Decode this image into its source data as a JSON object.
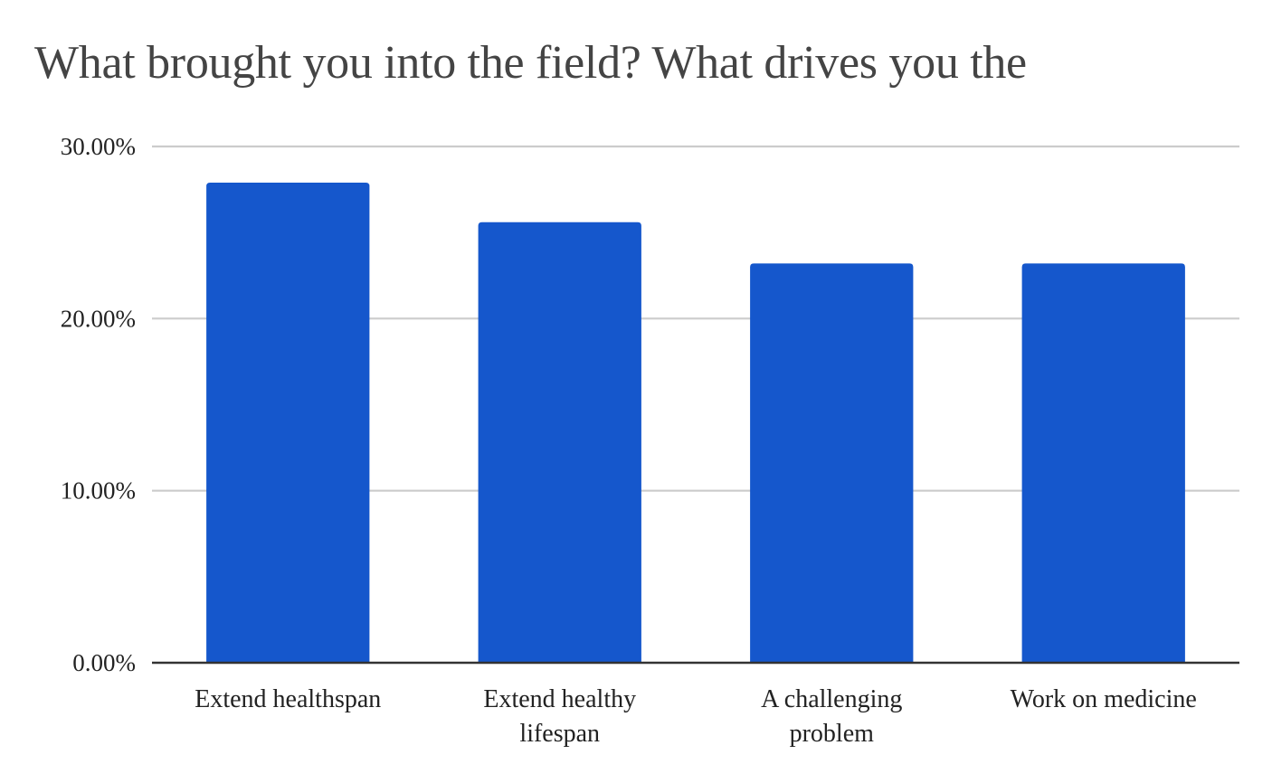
{
  "chart_data": {
    "type": "bar",
    "title": "What brought you into the field? What drives you the",
    "xlabel": "",
    "ylabel": "",
    "categories": [
      "Extend healthspan",
      "Extend healthy lifespan",
      "A challenging problem",
      "Work on medicine"
    ],
    "category_lines": [
      [
        "Extend healthspan"
      ],
      [
        "Extend healthy",
        "lifespan"
      ],
      [
        "A challenging",
        "problem"
      ],
      [
        "Work on medicine"
      ]
    ],
    "values": [
      27.9,
      25.6,
      23.2,
      23.2
    ],
    "ylim": [
      0,
      30
    ],
    "yticks": [
      0,
      10,
      20,
      30
    ],
    "ytick_labels": [
      "0.00%",
      "10.00%",
      "20.00%",
      "30.00%"
    ],
    "grid": true,
    "legend": "none",
    "bar_color": "#1557CC",
    "grid_color": "#CCCCCC",
    "axis_color": "#333333"
  }
}
